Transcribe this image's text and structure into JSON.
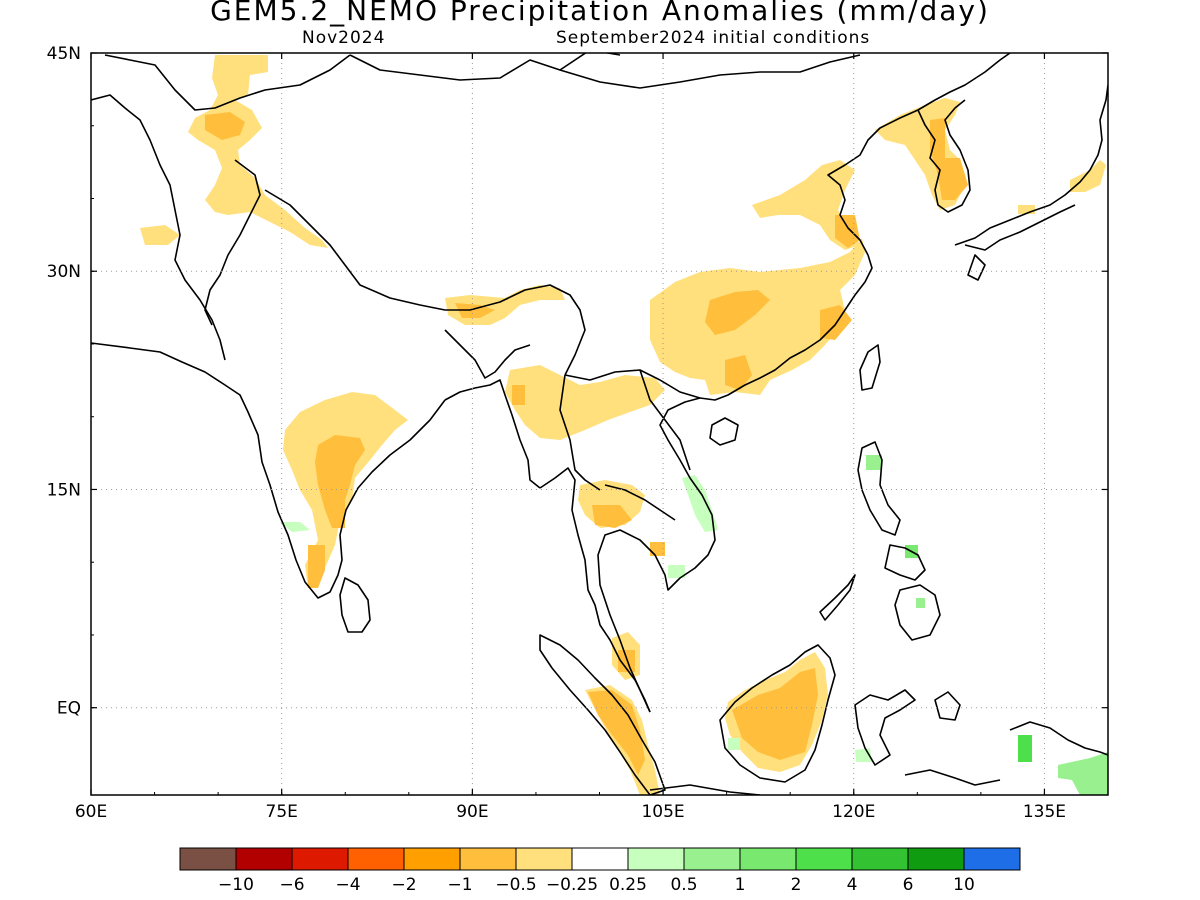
{
  "title": "GEM5.2_NEMO Precipitation Anomalies (mm/day)",
  "subtitle_left": "Nov2024",
  "subtitle_right": "September2024 initial conditions",
  "map": {
    "lon_range": [
      60,
      140
    ],
    "lat_range": [
      -6,
      45
    ],
    "x_ticks": [
      {
        "value": 60,
        "label": "60E"
      },
      {
        "value": 75,
        "label": "75E"
      },
      {
        "value": 90,
        "label": "90E"
      },
      {
        "value": 105,
        "label": "105E"
      },
      {
        "value": 120,
        "label": "120E"
      },
      {
        "value": 135,
        "label": "135E"
      }
    ],
    "y_ticks": [
      {
        "value": 45,
        "label": "45N"
      },
      {
        "value": 30,
        "label": "30N"
      },
      {
        "value": 15,
        "label": "15N"
      },
      {
        "value": 0,
        "label": "EQ"
      }
    ],
    "grid": "dotted"
  },
  "colorbar": {
    "colors": [
      "#7a4f44",
      "#b20000",
      "#dd1a00",
      "#ff6100",
      "#ff9f00",
      "#ffbe3c",
      "#ffe07c",
      "#ffffff",
      "#c7ffbe",
      "#98f08e",
      "#78e86e",
      "#4ee04a",
      "#32c232",
      "#109c10",
      "#1e6ee8"
    ],
    "labels": [
      "−10",
      "−6",
      "−4",
      "−2",
      "−1",
      "−0.5",
      "−0.25",
      "0.25",
      "0.5",
      "1",
      "2",
      "4",
      "6",
      "10"
    ]
  },
  "anomaly_regions": [
    {
      "name": "south-india-dry",
      "category": -0.25,
      "color": "#ffe07c"
    },
    {
      "name": "south-india-core",
      "category": -0.5,
      "color": "#ffbe3c"
    },
    {
      "name": "myanmar-dry",
      "category": -0.25,
      "color": "#ffe07c"
    },
    {
      "name": "south-china-dry",
      "category": -0.25,
      "color": "#ffe07c"
    },
    {
      "name": "south-china-core",
      "category": -0.5,
      "color": "#ffbe3c"
    },
    {
      "name": "borneo-dry",
      "category": -0.25,
      "color": "#ffe07c"
    },
    {
      "name": "borneo-core",
      "category": -0.5,
      "color": "#ffbe3c"
    },
    {
      "name": "sumatra-core",
      "category": -0.5,
      "color": "#ffbe3c"
    },
    {
      "name": "korea-core",
      "category": -0.5,
      "color": "#ffbe3c"
    },
    {
      "name": "vietnam-wet",
      "category": 0.25,
      "color": "#c7ffbe"
    },
    {
      "name": "philippines-wet",
      "category": 1,
      "color": "#78e86e"
    },
    {
      "name": "new-guinea-wet",
      "category": 0.5,
      "color": "#98f08e"
    }
  ]
}
